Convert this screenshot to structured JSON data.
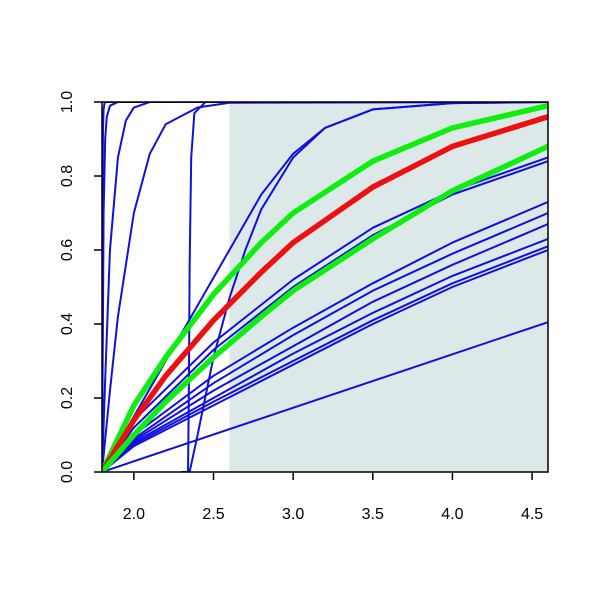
{
  "chart_data": {
    "type": "line",
    "title": "",
    "xlabel": "",
    "ylabel": "",
    "xlim": [
      1.8,
      4.6
    ],
    "ylim": [
      0.0,
      1.0
    ],
    "x_ticks": [
      2.0,
      2.5,
      3.0,
      3.5,
      4.0,
      4.5
    ],
    "x_tick_labels": [
      "2.0",
      "2.5",
      "3.0",
      "3.5",
      "4.0",
      "4.5"
    ],
    "y_ticks": [
      0.0,
      0.2,
      0.4,
      0.6,
      0.8,
      1.0
    ],
    "y_tick_labels": [
      "0.0",
      "0.2",
      "0.4",
      "0.6",
      "0.8",
      "1.0"
    ],
    "grid": false,
    "legend": "none",
    "shaded_region": {
      "x_from": 2.6,
      "x_to": 4.6,
      "color": "#dde9e9"
    },
    "colors": {
      "blue": "#1010e0",
      "red": "#ee1010",
      "green": "#10ee10"
    },
    "series": [
      {
        "color": "#1010e0",
        "x": [
          1.8,
          1.801,
          1.803,
          1.806,
          1.81,
          1.815,
          1.82,
          4.6
        ],
        "y": [
          0.0,
          0.3,
          0.7,
          0.92,
          0.98,
          0.995,
          1.0,
          1.0
        ]
      },
      {
        "color": "#1010e0",
        "x": [
          1.8,
          1.805,
          1.81,
          1.82,
          1.83,
          1.85,
          1.9,
          4.6
        ],
        "y": [
          0.0,
          0.35,
          0.7,
          0.9,
          0.96,
          0.99,
          1.0,
          1.0
        ]
      },
      {
        "color": "#1010e0",
        "x": [
          1.8,
          1.82,
          1.85,
          1.9,
          1.95,
          2.0,
          2.1,
          4.6
        ],
        "y": [
          0.0,
          0.25,
          0.6,
          0.85,
          0.95,
          0.985,
          1.0,
          1.0
        ]
      },
      {
        "color": "#1010e0",
        "x": [
          1.8,
          1.85,
          1.9,
          2.0,
          2.1,
          2.2,
          2.4,
          2.6,
          4.6
        ],
        "y": [
          0.0,
          0.22,
          0.42,
          0.7,
          0.86,
          0.94,
          0.985,
          0.998,
          1.0
        ]
      },
      {
        "color": "#1010e0",
        "x": [
          2.3,
          2.34,
          2.345,
          2.35,
          2.36,
          2.38,
          2.45,
          4.6
        ],
        "y": [
          0.0,
          0.0,
          0.2,
          0.55,
          0.85,
          0.97,
          1.0,
          1.0
        ]
      },
      {
        "color": "#1010e0",
        "x": [
          1.8,
          2.0,
          2.2,
          2.4,
          2.6,
          2.8,
          3.0,
          3.2,
          3.5,
          4.0,
          4.6
        ],
        "y": [
          0.0,
          0.15,
          0.3,
          0.45,
          0.6,
          0.75,
          0.86,
          0.93,
          0.98,
          0.997,
          1.0
        ]
      },
      {
        "color": "#1010e0",
        "x": [
          2.35,
          2.4,
          2.5,
          2.6,
          2.7,
          2.8,
          3.0,
          3.2,
          3.5,
          4.0,
          4.6
        ],
        "y": [
          0.0,
          0.1,
          0.31,
          0.47,
          0.6,
          0.71,
          0.85,
          0.93,
          0.98,
          0.997,
          1.0
        ]
      },
      {
        "color": "#1010e0",
        "x": [
          1.8,
          2.0,
          2.5,
          3.0,
          3.5,
          4.0,
          4.6
        ],
        "y": [
          0.0,
          0.14,
          0.35,
          0.52,
          0.66,
          0.76,
          0.85
        ]
      },
      {
        "color": "#1010e0",
        "x": [
          1.8,
          2.0,
          2.5,
          3.0,
          3.5,
          4.0,
          4.6
        ],
        "y": [
          0.0,
          0.12,
          0.33,
          0.5,
          0.64,
          0.75,
          0.84
        ]
      },
      {
        "color": "#1010e0",
        "x": [
          1.8,
          2.0,
          2.5,
          3.0,
          3.5,
          4.0,
          4.6
        ],
        "y": [
          0.0,
          0.1,
          0.26,
          0.39,
          0.51,
          0.62,
          0.73
        ]
      },
      {
        "color": "#1010e0",
        "x": [
          1.8,
          2.0,
          2.5,
          3.0,
          3.5,
          4.0,
          4.6
        ],
        "y": [
          0.0,
          0.09,
          0.24,
          0.37,
          0.49,
          0.59,
          0.7
        ]
      },
      {
        "color": "#1010e0",
        "x": [
          1.8,
          2.0,
          2.5,
          3.0,
          3.5,
          4.0,
          4.6
        ],
        "y": [
          0.0,
          0.085,
          0.22,
          0.34,
          0.46,
          0.56,
          0.67
        ]
      },
      {
        "color": "#1010e0",
        "x": [
          1.8,
          2.0,
          2.5,
          3.0,
          3.5,
          4.0,
          4.6
        ],
        "y": [
          0.0,
          0.08,
          0.2,
          0.32,
          0.43,
          0.53,
          0.63
        ]
      },
      {
        "color": "#1010e0",
        "x": [
          1.8,
          2.0,
          2.5,
          3.0,
          3.5,
          4.0,
          4.6
        ],
        "y": [
          0.0,
          0.075,
          0.19,
          0.3,
          0.41,
          0.51,
          0.61
        ]
      },
      {
        "color": "#1010e0",
        "x": [
          1.8,
          2.0,
          2.5,
          3.0,
          3.5,
          4.0,
          4.6
        ],
        "y": [
          0.0,
          0.07,
          0.18,
          0.29,
          0.4,
          0.5,
          0.6
        ]
      },
      {
        "color": "#1010e0",
        "x": [
          1.8,
          4.6
        ],
        "y": [
          0.0,
          0.405
        ]
      },
      {
        "color": "#10ee10",
        "thick": true,
        "x": [
          1.8,
          2.0,
          2.2,
          2.5,
          2.8,
          3.0,
          3.5,
          4.0,
          4.6
        ],
        "y": [
          0.0,
          0.18,
          0.31,
          0.48,
          0.62,
          0.7,
          0.84,
          0.93,
          0.99
        ]
      },
      {
        "color": "#ee1010",
        "thick": true,
        "x": [
          1.8,
          2.0,
          2.2,
          2.5,
          2.8,
          3.0,
          3.5,
          4.0,
          4.6
        ],
        "y": [
          0.0,
          0.14,
          0.26,
          0.41,
          0.54,
          0.62,
          0.77,
          0.88,
          0.96
        ]
      },
      {
        "color": "#10ee10",
        "thick": true,
        "x": [
          1.8,
          2.0,
          2.2,
          2.5,
          2.8,
          3.0,
          3.5,
          4.0,
          4.6
        ],
        "y": [
          0.0,
          0.1,
          0.19,
          0.31,
          0.42,
          0.49,
          0.63,
          0.76,
          0.88
        ]
      }
    ]
  }
}
